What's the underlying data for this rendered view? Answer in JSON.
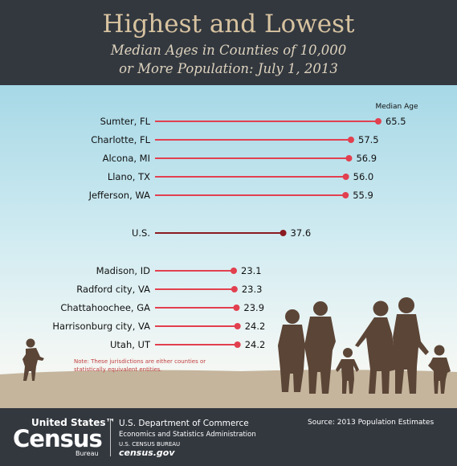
{
  "header": {
    "title": "Highest and Lowest",
    "subtitle_line1": "Median Ages in Counties of 10,000",
    "subtitle_line2": "or More Population: July 1, 2013"
  },
  "chart_data": {
    "type": "bar",
    "value_label": "Median Age",
    "categories": [
      "Sumter, FL",
      "Charlotte, FL",
      "Alcona, MI",
      "Llano, TX",
      "Jefferson, WA",
      "U.S.",
      "Madison, ID",
      "Radford city, VA",
      "Chattahoochee, GA",
      "Harrisonburg city, VA",
      "Utah, UT"
    ],
    "values": [
      65.5,
      57.5,
      56.9,
      56.0,
      55.9,
      37.6,
      23.1,
      23.3,
      23.9,
      24.2,
      24.2
    ],
    "value_labels": [
      "65.5",
      "57.5",
      "56.9",
      "56.0",
      "55.9",
      "37.6",
      "23.1",
      "23.3",
      "23.9",
      "24.2",
      "24.2"
    ],
    "highlight": "U.S.",
    "note": "Note: These jurisdictions are either counties or statistically equivalent entities.",
    "colors": {
      "bar": "#e2404f",
      "highlight": "#8b1b22",
      "ground": "#c5b59d",
      "silhouette": "#5b4536",
      "header": "#33383f"
    }
  },
  "footer": {
    "logo_line1": "United States™",
    "logo_line2": "Census",
    "logo_line3": "Bureau",
    "dept": "U.S. Department of Commerce",
    "econ": "Economics and Statistics Administration",
    "bureau": "U.S. CENSUS BUREAU",
    "website": "census.gov",
    "source": "Source: 2013 Population Estimates"
  }
}
